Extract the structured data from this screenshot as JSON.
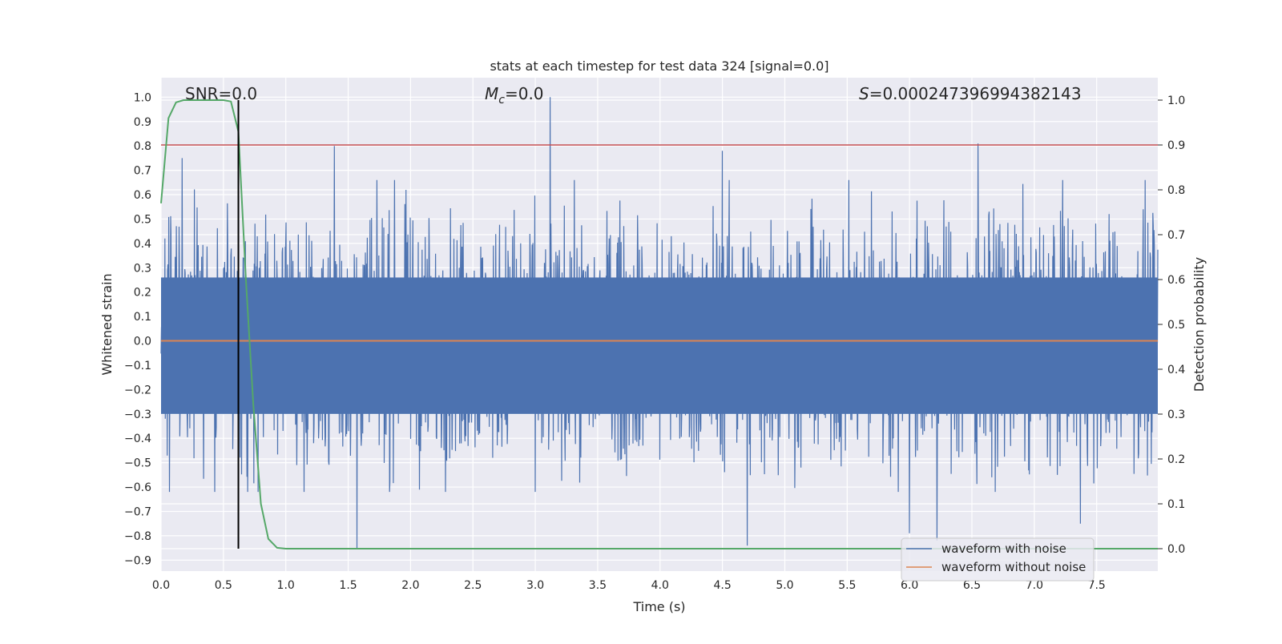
{
  "chart_data": {
    "type": "line",
    "title": "stats at each timestep for test data 324 [signal=0.0]",
    "xlabel": "Time (s)",
    "ylabel": "Whitened strain",
    "y2label": "Detection probability",
    "xlim": [
      0.0,
      7.99
    ],
    "ylim": [
      -0.945,
      1.08
    ],
    "y2lim": [
      -0.05,
      1.05
    ],
    "x_ticks": [
      "0.0",
      "0.5",
      "1.0",
      "1.5",
      "2.0",
      "2.5",
      "3.0",
      "3.5",
      "4.0",
      "4.5",
      "5.0",
      "5.5",
      "6.0",
      "6.5",
      "7.0",
      "7.5"
    ],
    "y_ticks": [
      "1.0",
      "0.9",
      "0.8",
      "0.7",
      "0.6",
      "0.5",
      "0.4",
      "0.3",
      "0.2",
      "0.1",
      "0.0",
      "-0.1",
      "-0.2",
      "-0.3",
      "-0.4",
      "-0.5",
      "-0.6",
      "-0.7",
      "-0.8",
      "-0.9"
    ],
    "y2_ticks": [
      "1.0",
      "0.9",
      "0.8",
      "0.7",
      "0.6",
      "0.5",
      "0.4",
      "0.3",
      "0.2",
      "0.1",
      "0.0"
    ],
    "annotations": {
      "snr_label": "SNR=0.0",
      "mc_symbol": "M",
      "mc_subscript": "c",
      "mc_value": "=0.0",
      "s_symbol": "S",
      "s_value": "=0.000247396994382143"
    },
    "series": [
      {
        "name": "waveform with noise",
        "color": "#4c72b0",
        "description_of_values": "whitened strain noise, dense band roughly -0.5..0.5 with spikes up to 1.0 near t=3.12",
        "spikes": [
          {
            "x": 0.17,
            "y": 0.75
          },
          {
            "x": 1.39,
            "y": 0.8
          },
          {
            "x": 3.12,
            "y": 1.0
          },
          {
            "x": 4.5,
            "y": 0.78
          },
          {
            "x": 6.55,
            "y": 0.81
          },
          {
            "x": 1.57,
            "y": -0.85
          },
          {
            "x": 4.7,
            "y": -0.84
          },
          {
            "x": 6.0,
            "y": -0.79
          },
          {
            "x": 6.22,
            "y": -0.82
          },
          {
            "x": 7.37,
            "y": -0.75
          }
        ]
      },
      {
        "name": "waveform without noise",
        "color": "#dd8452",
        "x": [
          0.0,
          7.99
        ],
        "y": [
          0.0,
          0.0
        ]
      },
      {
        "name": "",
        "color": "#55a868",
        "axis": "right",
        "x": [
          0.0,
          0.06,
          0.12,
          0.18,
          0.25,
          0.3,
          0.37,
          0.43,
          0.5,
          0.56,
          0.62,
          0.68,
          0.74,
          0.8,
          0.86,
          0.93,
          1.0,
          1.5,
          2.0,
          3.0,
          4.0,
          5.0,
          6.0,
          7.0,
          7.99
        ],
        "y": [
          0.77,
          0.96,
          0.995,
          1.0,
          1.0,
          1.0,
          1.0,
          1.0,
          1.0,
          0.997,
          0.93,
          0.6,
          0.32,
          0.1,
          0.022,
          0.002,
          0.0,
          0.0,
          0.0,
          0.0,
          0.0,
          0.0,
          0.0,
          0.0,
          0.0
        ]
      }
    ],
    "threshold_line": {
      "color": "#c44e52",
      "y2": 0.9
    },
    "marker_line": {
      "color": "#000000",
      "x": 0.62,
      "y2_top": 1.0,
      "y2_bottom": 0.0
    },
    "legend": {
      "placement": "bottom-right",
      "entries": [
        {
          "label": "waveform with noise",
          "color": "#4c72b0"
        },
        {
          "label": "waveform without noise",
          "color": "#dd8452"
        }
      ]
    },
    "background_color": "#eaeaf2",
    "grid": true
  }
}
